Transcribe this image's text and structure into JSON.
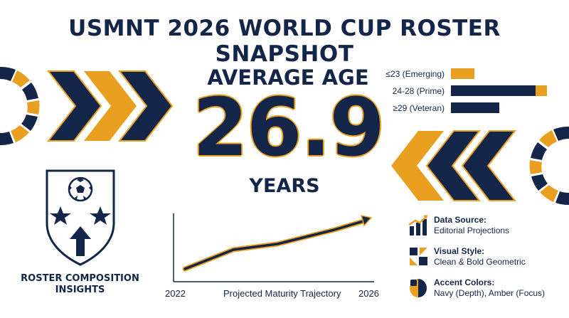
{
  "title": "USMNT 2026 WORLD CUP ROSTER SNAPSHOT",
  "stat": {
    "label": "AVERAGE AGE",
    "value": "26.9",
    "unit": "YEARS"
  },
  "chart_data": {
    "type": "bar",
    "orientation": "horizontal",
    "categories": [
      "≤23 (Emerging)",
      "24-28 (Prime)",
      "≥29 (Veteran)"
    ],
    "series": [
      {
        "values": [
          0.22,
          0.9,
          0.45
        ]
      }
    ],
    "notes": "Unlabeled magnitude bars; values are relative lengths (fraction of the longest track). Prime bar has amber cap at its end."
  },
  "trend": {
    "start_label": "2022",
    "end_label": "2026",
    "caption": "Projected Maturity Trajectory"
  },
  "shield": {
    "caption_line1": "ROSTER COMPOSITION",
    "caption_line2": "INSIGHTS"
  },
  "legend": [
    {
      "heading": "Data Source:",
      "text": "Editorial Projections",
      "icon": "chart-trend-icon"
    },
    {
      "heading": "Visual Style:",
      "text": "Clean & Bold Geometric",
      "icon": "geometric-shapes-icon"
    },
    {
      "heading": "Accent Colors:",
      "text": "Navy (Depth), Amber (Focus)",
      "icon": "color-swatch-icon"
    }
  ],
  "colors": {
    "navy": "#14254a",
    "amber": "#e9a021"
  }
}
